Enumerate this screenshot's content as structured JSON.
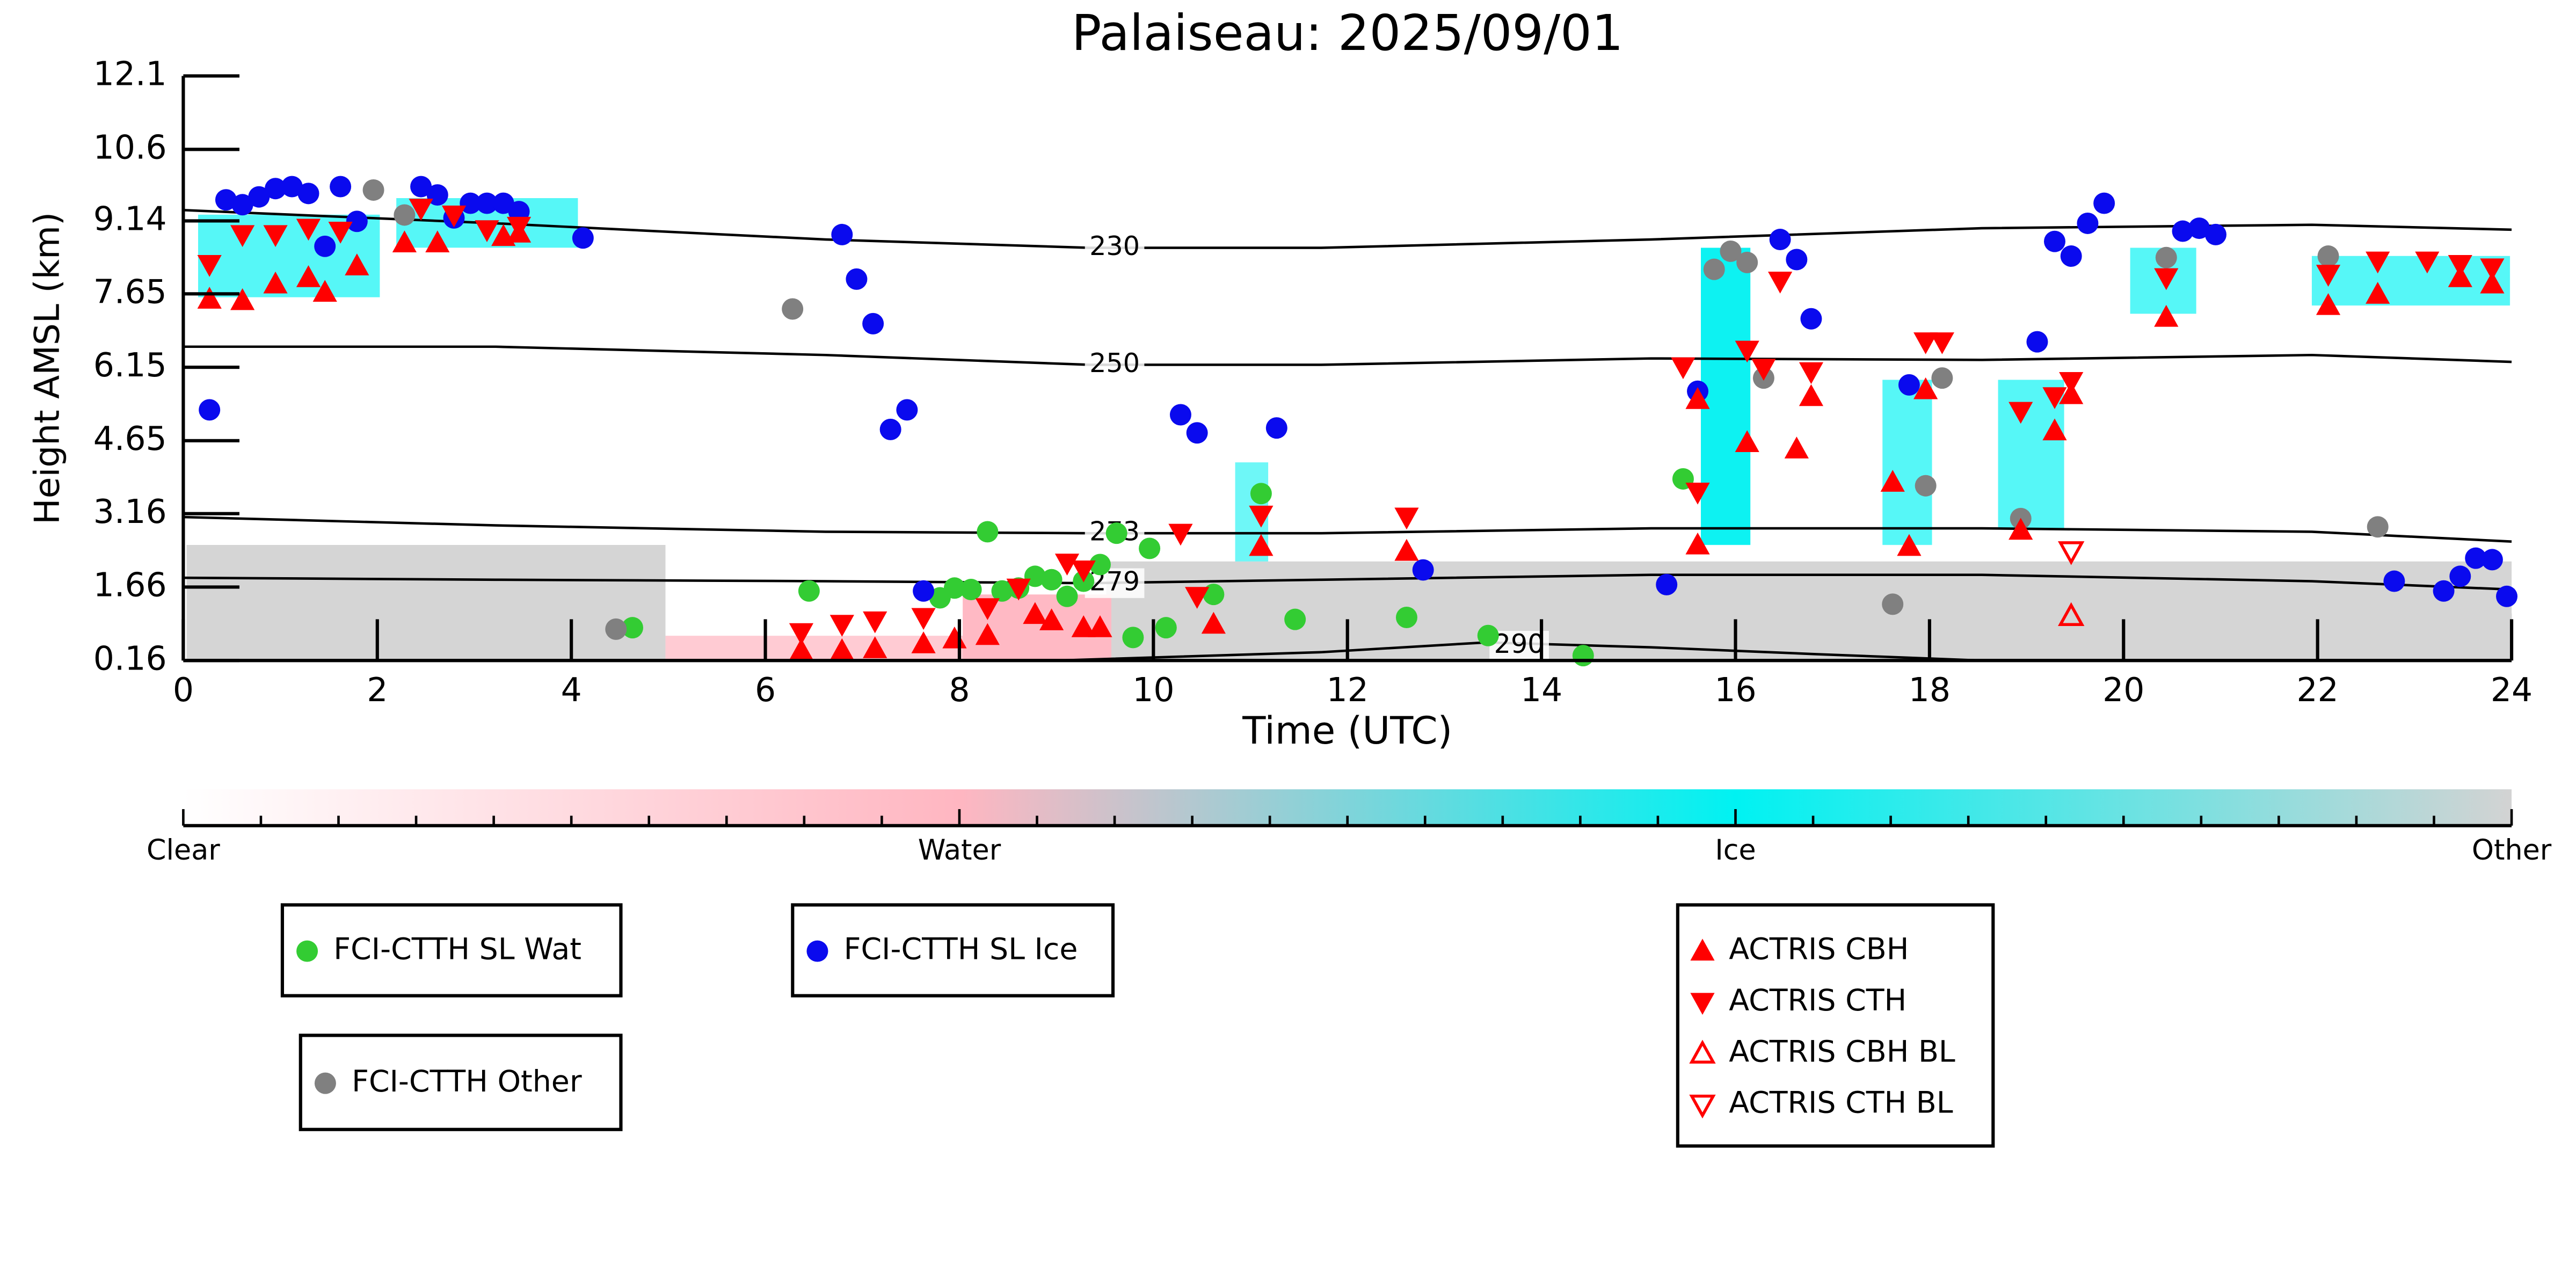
{
  "chart_data": {
    "type": "scatter",
    "title": "Palaiseau: 2025/09/01",
    "xlabel": "Time (UTC)",
    "ylabel": "Height AMSL (km)",
    "xlim": [
      0,
      24
    ],
    "ylim": [
      0.16,
      12.1
    ],
    "xticks": [
      0,
      2,
      4,
      6,
      8,
      10,
      12,
      14,
      16,
      18,
      20,
      22,
      24
    ],
    "yticks": [
      0.16,
      1.66,
      3.16,
      4.65,
      6.15,
      7.65,
      9.14,
      10.6,
      12.1
    ],
    "series": [
      {
        "name": "FCI-CTTH SL Wat",
        "color": "#33cc33",
        "marker": "circle",
        "filled": true,
        "x": [
          4.63,
          6.45,
          8.29,
          7.8,
          7.95,
          8.12,
          8.44,
          8.61,
          8.78,
          8.95,
          9.11,
          9.28,
          9.45,
          9.62,
          9.79,
          9.96,
          10.13,
          10.62,
          11.11,
          11.46,
          12.61,
          13.45,
          14.43,
          15.46
        ],
        "values": [
          0.83,
          1.58,
          2.79,
          1.44,
          1.64,
          1.61,
          1.58,
          1.64,
          1.88,
          1.81,
          1.47,
          1.78,
          2.12,
          2.76,
          0.63,
          2.45,
          0.83,
          1.51,
          3.57,
          1.0,
          1.04,
          0.67,
          0.26,
          3.87
        ]
      },
      {
        "name": "FCI-CTTH SL Ice",
        "color": "#0a0aee",
        "marker": "circle",
        "filled": true,
        "x": [
          0.27,
          0.44,
          0.61,
          0.78,
          0.95,
          1.12,
          1.29,
          1.46,
          1.62,
          1.79,
          2.45,
          2.62,
          2.79,
          2.96,
          3.13,
          3.3,
          3.46,
          4.12,
          6.79,
          6.94,
          7.11,
          7.29,
          7.46,
          7.63,
          10.28,
          10.45,
          11.27,
          12.78,
          15.29,
          15.61,
          16.46,
          16.63,
          16.78,
          17.79,
          19.11,
          19.29,
          19.46,
          19.63,
          19.8,
          20.61,
          20.78,
          20.95,
          22.79,
          23.3,
          23.47,
          23.63,
          23.8,
          23.95
        ],
        "values": [
          5.28,
          9.57,
          9.47,
          9.63,
          9.8,
          9.84,
          9.7,
          8.62,
          9.84,
          9.13,
          9.84,
          9.67,
          9.2,
          9.5,
          9.5,
          9.5,
          9.33,
          8.79,
          8.86,
          7.95,
          7.04,
          4.88,
          5.28,
          1.58,
          5.18,
          4.81,
          4.91,
          2.01,
          1.71,
          5.66,
          8.76,
          8.35,
          7.14,
          5.79,
          6.67,
          8.72,
          8.42,
          9.09,
          9.5,
          8.93,
          8.99,
          8.86,
          1.78,
          1.58,
          1.88,
          2.25,
          2.22,
          1.47
        ]
      },
      {
        "name": "FCI-CTTH Other",
        "color": "#808080",
        "marker": "circle",
        "filled": true,
        "x": [
          1.96,
          2.28,
          4.46,
          6.28,
          15.78,
          15.95,
          16.12,
          16.29,
          17.62,
          17.96,
          18.13,
          18.94,
          20.44,
          22.11,
          22.62
        ],
        "values": [
          9.77,
          9.26,
          0.8,
          7.34,
          8.15,
          8.52,
          8.29,
          5.93,
          1.31,
          3.73,
          5.93,
          3.06,
          8.39,
          8.42,
          2.89
        ]
      },
      {
        "name": "ACTRIS CBH",
        "color": "#ff0000",
        "marker": "triangle-up",
        "filled": true,
        "x": [
          0.27,
          0.61,
          0.95,
          1.29,
          1.46,
          1.79,
          2.28,
          2.62,
          3.3,
          3.46,
          6.37,
          6.79,
          7.13,
          7.63,
          7.95,
          8.29,
          8.78,
          8.95,
          9.28,
          9.45,
          10.62,
          11.11,
          12.61,
          15.61,
          15.61,
          16.12,
          16.63,
          16.78,
          17.62,
          17.79,
          17.96,
          18.94,
          19.29,
          19.46,
          20.44,
          22.11,
          22.62,
          23.47,
          23.8
        ],
        "values": [
          7.54,
          7.51,
          7.85,
          7.98,
          7.68,
          8.22,
          8.69,
          8.69,
          8.82,
          8.89,
          0.36,
          0.36,
          0.4,
          0.5,
          0.6,
          0.67,
          1.1,
          0.97,
          0.83,
          0.83,
          0.9,
          2.49,
          2.39,
          5.49,
          2.52,
          4.61,
          4.48,
          5.55,
          3.8,
          2.49,
          5.69,
          2.82,
          4.85,
          5.59,
          7.17,
          7.41,
          7.64,
          7.98,
          7.85
        ]
      },
      {
        "name": "ACTRIS CTH",
        "color": "#ff0000",
        "marker": "triangle-down",
        "filled": true,
        "x": [
          0.27,
          0.61,
          0.95,
          1.29,
          1.62,
          2.45,
          2.79,
          3.13,
          3.46,
          6.37,
          6.79,
          7.13,
          7.63,
          8.29,
          8.61,
          9.11,
          9.28,
          10.28,
          10.45,
          11.11,
          12.61,
          15.46,
          15.61,
          16.12,
          16.29,
          16.46,
          16.78,
          17.96,
          18.13,
          18.94,
          19.29,
          19.46,
          20.44,
          22.11,
          22.62,
          23.13,
          23.47,
          23.8
        ],
        "values": [
          8.25,
          8.86,
          8.86,
          8.99,
          8.93,
          9.4,
          9.26,
          8.96,
          9.03,
          0.73,
          0.9,
          0.97,
          1.04,
          1.24,
          1.64,
          2.15,
          2.01,
          2.76,
          1.47,
          3.13,
          3.09,
          6.16,
          3.6,
          6.5,
          6.13,
          7.91,
          6.06,
          6.67,
          6.67,
          5.25,
          5.55,
          5.86,
          7.98,
          8.05,
          8.32,
          8.32,
          8.25,
          8.18
        ]
      },
      {
        "name": "ACTRIS CBH BL",
        "color": "#ff0000",
        "marker": "triangle-up",
        "filled": false,
        "x": [
          19.46
        ],
        "values": [
          1.07
        ]
      },
      {
        "name": "ACTRIS CTH BL",
        "color": "#ff0000",
        "marker": "triangle-down",
        "filled": false,
        "x": [
          19.46
        ],
        "values": [
          2.39
        ]
      }
    ],
    "contours": [
      {
        "level": 230,
        "x": [
          0,
          3.22,
          6.62,
          9.34,
          11.73,
          15.13,
          18.54,
          21.94,
          24
        ],
        "values": [
          9.36,
          9.09,
          8.76,
          8.59,
          8.59,
          8.76,
          8.99,
          9.06,
          8.96
        ]
      },
      {
        "level": 250,
        "x": [
          0,
          3.22,
          6.62,
          9.34,
          11.73,
          15.13,
          18.54,
          21.94,
          24
        ],
        "values": [
          6.57,
          6.57,
          6.4,
          6.2,
          6.2,
          6.33,
          6.3,
          6.4,
          6.26
        ]
      },
      {
        "level": 273,
        "x": [
          0,
          3.22,
          6.62,
          9.34,
          11.73,
          15.13,
          18.54,
          21.94,
          24
        ],
        "values": [
          3.09,
          2.92,
          2.79,
          2.76,
          2.76,
          2.86,
          2.86,
          2.79,
          2.59
        ]
      },
      {
        "level": 279,
        "x": [
          0,
          3.22,
          6.62,
          9.34,
          11.73,
          15.13,
          18.54,
          21.94,
          24
        ],
        "values": [
          1.85,
          1.81,
          1.78,
          1.74,
          1.81,
          1.91,
          1.91,
          1.78,
          1.61
        ]
      },
      {
        "level": 290,
        "x": [
          9.0,
          11.73,
          13.43,
          15.13,
          16.83,
          18.54
        ],
        "values": [
          0.16,
          0.33,
          0.53,
          0.43,
          0.29,
          0.16
        ]
      }
    ],
    "colorbar": {
      "labels": [
        "Clear",
        "Water",
        "Ice",
        "Other"
      ],
      "colors": [
        "#ffffff",
        "#ffb6c1",
        "#00f2f2",
        "#d3d3d3"
      ]
    }
  }
}
